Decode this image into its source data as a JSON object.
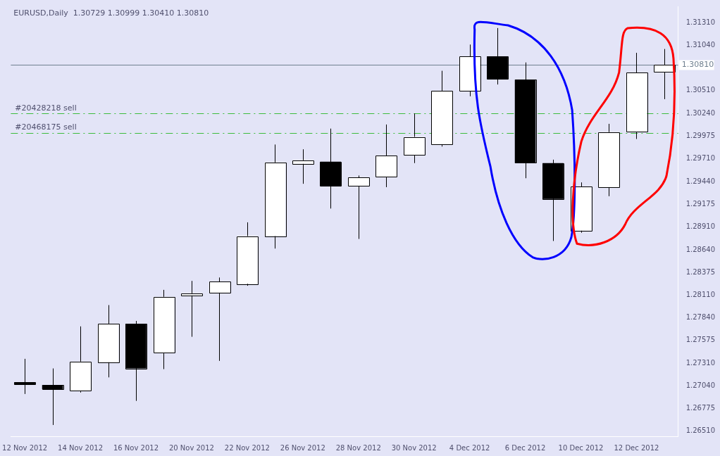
{
  "chart_data": {
    "type": "candlestick",
    "title": "EURUSD,Daily  1.30729 1.30999 1.30410 1.30810",
    "categories": [
      "12 Nov 2012",
      null,
      "14 Nov 2012",
      null,
      "16 Nov 2012",
      null,
      "20 Nov 2012",
      null,
      "22 Nov 2012",
      null,
      "26 Nov 2012",
      null,
      "28 Nov 2012",
      null,
      "30 Nov 2012",
      null,
      "4 Dec 2012",
      null,
      "6 Dec 2012",
      null,
      "10 Dec 2012",
      null,
      "12 Dec 2012",
      null
    ],
    "ohlc": [
      [
        1.27085,
        1.2736,
        1.26947,
        1.2706
      ],
      [
        1.27052,
        1.27247,
        1.26583,
        1.27004
      ],
      [
        1.26988,
        1.27741,
        1.26964,
        1.27328
      ],
      [
        1.2732,
        1.27991,
        1.27142,
        1.27773
      ],
      [
        1.27773,
        1.27805,
        1.26866,
        1.27247
      ],
      [
        1.27433,
        1.2817,
        1.27239,
        1.28089
      ],
      [
        1.28105,
        1.28275,
        1.27619,
        1.28129
      ],
      [
        1.28137,
        1.28315,
        1.27336,
        1.28267
      ],
      [
        1.28242,
        1.28963,
        1.28218,
        1.28801
      ],
      [
        1.28801,
        1.29877,
        1.28655,
        1.29667
      ],
      [
        1.29651,
        1.29821,
        1.29416,
        1.29691
      ],
      [
        1.29675,
        1.30064,
        1.29125,
        1.29392
      ],
      [
        1.29392,
        1.29513,
        1.28768,
        1.29489
      ],
      [
        1.29497,
        1.30112,
        1.29376,
        1.29748
      ],
      [
        1.29756,
        1.30242,
        1.29659,
        1.29966
      ],
      [
        1.29877,
        1.30743,
        1.29853,
        1.30509
      ],
      [
        1.30509,
        1.31051,
        1.30444,
        1.30913
      ],
      [
        1.30913,
        1.31245,
        1.30582,
        1.30646
      ],
      [
        1.30638,
        1.30841,
        1.29481,
        1.29659
      ],
      [
        1.29659,
        1.29699,
        1.28744,
        1.29238
      ],
      [
        1.28866,
        1.29432,
        1.28841,
        1.29384
      ],
      [
        1.29376,
        1.3012,
        1.2927,
        1.30023
      ],
      [
        1.30023,
        1.30954,
        1.29942,
        1.30719
      ],
      [
        1.30729,
        1.30999,
        1.3041,
        1.3081
      ]
    ],
    "colors": [
      "#000000",
      "#000000",
      "#ffffff",
      "#ffffff",
      "#000000",
      "#ffffff",
      "#ffffff",
      "#ffffff",
      "#ffffff",
      "#ffffff",
      "#ffffff",
      "#000000",
      "#ffffff",
      "#ffffff",
      "#ffffff",
      "#ffffff",
      "#ffffff",
      "#000000",
      "#000000",
      "#000000",
      "#ffffff",
      "#ffffff",
      "#ffffff",
      "#ffffff"
    ],
    "ylim": [
      1.2645,
      1.315
    ],
    "yticks": [
      {
        "value": 1.2651,
        "label": "1.26510"
      },
      {
        "value": 1.26775,
        "label": "1.26775"
      },
      {
        "value": 1.2704,
        "label": "1.27040"
      },
      {
        "value": 1.2731,
        "label": "1.27310"
      },
      {
        "value": 1.27575,
        "label": "1.27575"
      },
      {
        "value": 1.2784,
        "label": "1.27840"
      },
      {
        "value": 1.2811,
        "label": "1.28110"
      },
      {
        "value": 1.28375,
        "label": "1.28375"
      },
      {
        "value": 1.2864,
        "label": "1.28640"
      },
      {
        "value": 1.2891,
        "label": "1.28910"
      },
      {
        "value": 1.29175,
        "label": "1.29175"
      },
      {
        "value": 1.2944,
        "label": "1.29440"
      },
      {
        "value": 1.2971,
        "label": "1.29710"
      },
      {
        "value": 1.29975,
        "label": "1.29975"
      },
      {
        "value": 1.3024,
        "label": "1.30240"
      },
      {
        "value": 1.3051,
        "label": "1.30510"
      },
      {
        "value": 1.3104,
        "label": "1.31040"
      },
      {
        "value": 1.3131,
        "label": "1.31310"
      }
    ],
    "ref_lines": [
      {
        "axis": "y",
        "value": 1.3081,
        "label": "1.30810",
        "color": "#708090",
        "line_style": "solid"
      },
      {
        "axis": "y",
        "value": 1.3024,
        "label": "#20428218 sell",
        "color": "#3cbc3c",
        "line_style": "dashdot"
      },
      {
        "axis": "y",
        "value": 1.30015,
        "label": "#20468175 sell",
        "color": "#3cbc3c",
        "line_style": "dashdot"
      }
    ],
    "grid": false,
    "legend": false
  }
}
